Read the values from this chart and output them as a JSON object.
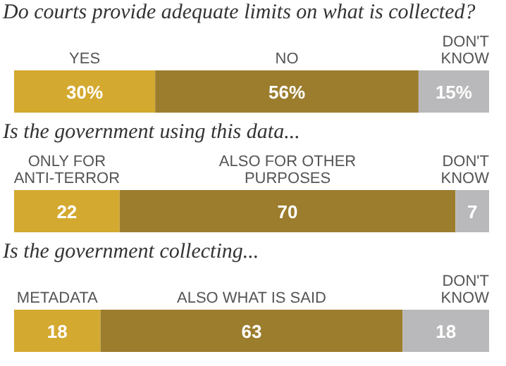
{
  "chart_data": [
    {
      "type": "bar",
      "orientation": "horizontal",
      "stacked": true,
      "title": "Do courts provide adequate limits on what is collected?",
      "categories": [
        null
      ],
      "xlim": [
        0,
        101
      ],
      "tick_labels": false,
      "series": [
        {
          "name": "YES",
          "color": "#d4a92f",
          "values": [
            30
          ],
          "value_labels": [
            "30%"
          ]
        },
        {
          "name": "NO",
          "color": "#9c7d2d",
          "values": [
            56
          ],
          "value_labels": [
            "56%"
          ]
        },
        {
          "name": "DON'T KNOW",
          "color": "#b9b9bb",
          "values": [
            15
          ],
          "value_labels": [
            "15%"
          ]
        }
      ]
    },
    {
      "type": "bar",
      "orientation": "horizontal",
      "stacked": true,
      "title": "Is the government using this data...",
      "categories": [
        null
      ],
      "xlim": [
        0,
        99
      ],
      "tick_labels": false,
      "data_labels": true,
      "series": [
        {
          "name": "ONLY FOR ANTI-TERROR",
          "color": "#d4a92f",
          "values": [
            22
          ]
        },
        {
          "name": "ALSO FOR OTHER PURPOSES",
          "color": "#9c7d2d",
          "values": [
            70
          ]
        },
        {
          "name": "DON'T KNOW",
          "color": "#b9b9bb",
          "values": [
            7
          ]
        }
      ]
    },
    {
      "type": "bar",
      "orientation": "horizontal",
      "stacked": true,
      "title": "Is the government collecting...",
      "categories": [
        null
      ],
      "xlim": [
        0,
        99
      ],
      "tick_labels": false,
      "data_labels": true,
      "series": [
        {
          "name": "METADATA",
          "color": "#d4a92f",
          "values": [
            18
          ]
        },
        {
          "name": "ALSO WHAT IS SAID",
          "color": "#9c7d2d",
          "values": [
            63
          ]
        },
        {
          "name": "DON'T KNOW",
          "color": "#b9b9bb",
          "values": [
            18
          ]
        }
      ]
    }
  ]
}
